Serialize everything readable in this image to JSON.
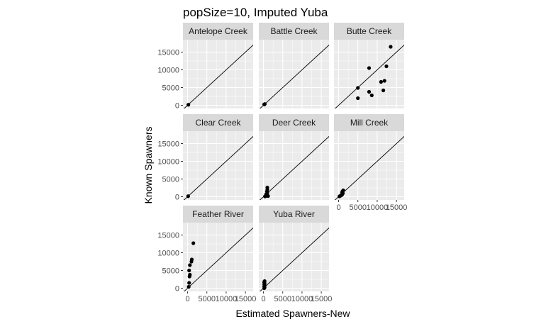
{
  "chart_data": {
    "type": "scatter",
    "title": "popSize=10, Imputed Yuba",
    "xlabel": "Estimated Spawners-New",
    "ylabel": "Known Spawners",
    "xlim": [
      -1200,
      17000
    ],
    "ylim": [
      -900,
      18500
    ],
    "x_ticks": [
      0,
      5000,
      10000,
      15000
    ],
    "x_tick_labels": [
      "0",
      "5000",
      "10000",
      "15000"
    ],
    "y_ticks": [
      0,
      5000,
      10000,
      15000
    ],
    "y_tick_labels": [
      "0",
      "5000",
      "10000",
      "15000"
    ],
    "grid": true,
    "reference_line": "y = x",
    "facets": [
      {
        "name": "Antelope Creek",
        "points": [
          {
            "x": 200,
            "y": 150
          }
        ]
      },
      {
        "name": "Battle Creek",
        "points": [
          {
            "x": 200,
            "y": 250
          },
          {
            "x": 350,
            "y": 350
          }
        ]
      },
      {
        "name": "Butte Creek",
        "points": [
          {
            "x": 5000,
            "y": 4900
          },
          {
            "x": 5000,
            "y": 2000
          },
          {
            "x": 7900,
            "y": 10500
          },
          {
            "x": 7900,
            "y": 3800
          },
          {
            "x": 8600,
            "y": 2800
          },
          {
            "x": 11000,
            "y": 6600
          },
          {
            "x": 11900,
            "y": 6900
          },
          {
            "x": 11600,
            "y": 4200
          },
          {
            "x": 12400,
            "y": 11000
          },
          {
            "x": 13500,
            "y": 16500
          }
        ]
      },
      {
        "name": "Clear Creek",
        "points": [
          {
            "x": 150,
            "y": 150
          }
        ]
      },
      {
        "name": "Deer Creek",
        "points": [
          {
            "x": 400,
            "y": 100
          },
          {
            "x": 600,
            "y": 200
          },
          {
            "x": 800,
            "y": 400
          },
          {
            "x": 1000,
            "y": 300
          },
          {
            "x": 1200,
            "y": 200
          },
          {
            "x": 700,
            "y": 700
          },
          {
            "x": 1000,
            "y": 1100
          },
          {
            "x": 900,
            "y": 1500
          },
          {
            "x": 1000,
            "y": 2000
          },
          {
            "x": 1000,
            "y": 2600
          }
        ]
      },
      {
        "name": "Mill Creek",
        "points": [
          {
            "x": 200,
            "y": 100
          },
          {
            "x": 500,
            "y": 300
          },
          {
            "x": 700,
            "y": 400
          },
          {
            "x": 900,
            "y": 600
          },
          {
            "x": 1000,
            "y": 800
          },
          {
            "x": 1100,
            "y": 1000
          },
          {
            "x": 900,
            "y": 1200
          },
          {
            "x": 1000,
            "y": 1500
          },
          {
            "x": 1200,
            "y": 1800
          }
        ]
      },
      {
        "name": "Feather River",
        "points": [
          {
            "x": 300,
            "y": 400
          },
          {
            "x": 400,
            "y": 1500
          },
          {
            "x": 500,
            "y": 3300
          },
          {
            "x": 600,
            "y": 3800
          },
          {
            "x": 400,
            "y": 5000
          },
          {
            "x": 600,
            "y": 6500
          },
          {
            "x": 1000,
            "y": 7500
          },
          {
            "x": 1100,
            "y": 8100
          },
          {
            "x": 1500,
            "y": 12700
          }
        ]
      },
      {
        "name": "Yuba River",
        "points": [
          {
            "x": 200,
            "y": 0
          },
          {
            "x": 300,
            "y": 200
          },
          {
            "x": 200,
            "y": 500
          },
          {
            "x": 300,
            "y": 800
          },
          {
            "x": 200,
            "y": 1100
          },
          {
            "x": 300,
            "y": 1400
          },
          {
            "x": 200,
            "y": 1700
          },
          {
            "x": 300,
            "y": 2000
          }
        ]
      }
    ]
  }
}
